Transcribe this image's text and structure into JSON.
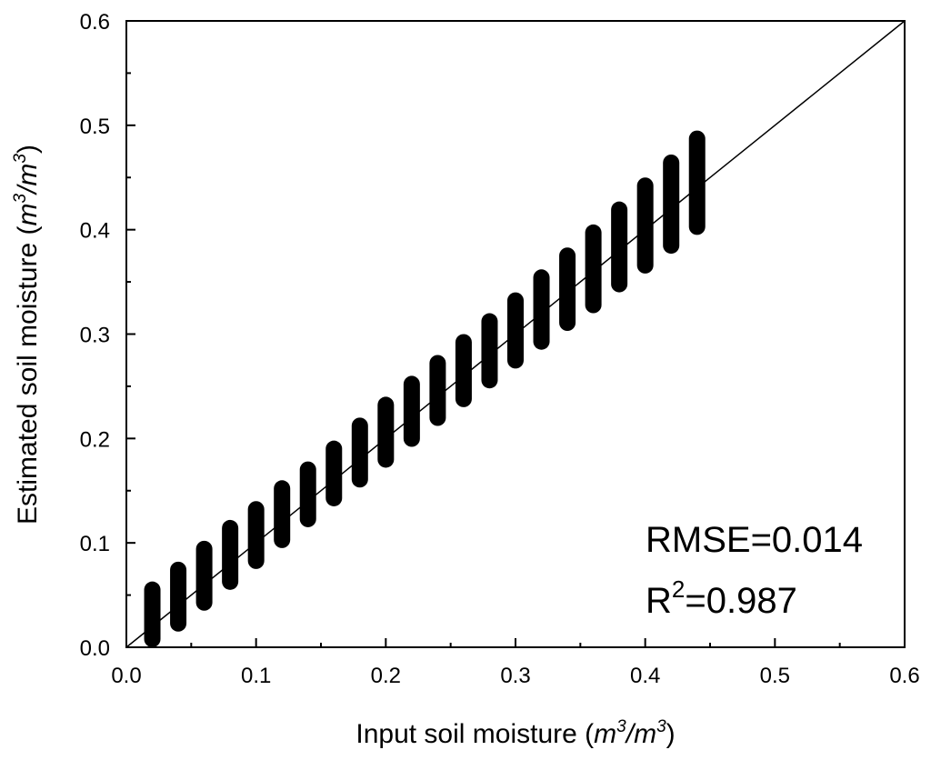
{
  "chart_data": {
    "type": "scatter",
    "xlabel": {
      "main": "Input soil moisture (",
      "unit_base": "m",
      "unit_exp": "3",
      "unit_mid": "/",
      "unit_base2": "m",
      "unit_exp2": "3",
      "close": ")"
    },
    "ylabel": {
      "main": "Estimated soil moisture (",
      "unit_base": "m",
      "unit_exp": "3",
      "unit_mid": "/",
      "unit_base2": "m",
      "unit_exp2": "3",
      "close": ")"
    },
    "xlim": [
      0.0,
      0.6
    ],
    "ylim": [
      0.0,
      0.6
    ],
    "x_ticks": [
      "0.0",
      "0.1",
      "0.2",
      "0.3",
      "0.4",
      "0.5",
      "0.6"
    ],
    "y_ticks": [
      "0.0",
      "0.1",
      "0.2",
      "0.3",
      "0.4",
      "0.5",
      "0.6"
    ],
    "x_tick_values": [
      0.0,
      0.1,
      0.2,
      0.3,
      0.4,
      0.5,
      0.6
    ],
    "y_tick_values": [
      0.0,
      0.1,
      0.2,
      0.3,
      0.4,
      0.5,
      0.6
    ],
    "grid": false,
    "reference_line": {
      "type": "1:1",
      "from": [
        0.0,
        0.0
      ],
      "to": [
        0.6,
        0.6
      ]
    },
    "marker_color": "#000000",
    "series": [
      {
        "x": [
          0.02,
          0.04,
          0.06,
          0.08,
          0.1,
          0.12,
          0.14,
          0.16,
          0.18,
          0.2,
          0.22,
          0.24,
          0.26,
          0.28,
          0.3,
          0.32,
          0.34,
          0.36,
          0.38,
          0.4,
          0.42,
          0.44
        ],
        "y_min": [
          0.0,
          0.015,
          0.035,
          0.055,
          0.075,
          0.095,
          0.115,
          0.135,
          0.153,
          0.172,
          0.192,
          0.212,
          0.23,
          0.248,
          0.267,
          0.285,
          0.303,
          0.32,
          0.34,
          0.358,
          0.377,
          0.395
        ],
        "y_max": [
          0.063,
          0.082,
          0.102,
          0.122,
          0.14,
          0.16,
          0.178,
          0.198,
          0.22,
          0.24,
          0.26,
          0.28,
          0.3,
          0.32,
          0.34,
          0.362,
          0.383,
          0.405,
          0.427,
          0.45,
          0.472,
          0.495
        ]
      }
    ],
    "annotations": {
      "rmse": "RMSE=0.014",
      "r2_base": "R",
      "r2_exp": "2",
      "r2_value": "=0.987"
    }
  }
}
